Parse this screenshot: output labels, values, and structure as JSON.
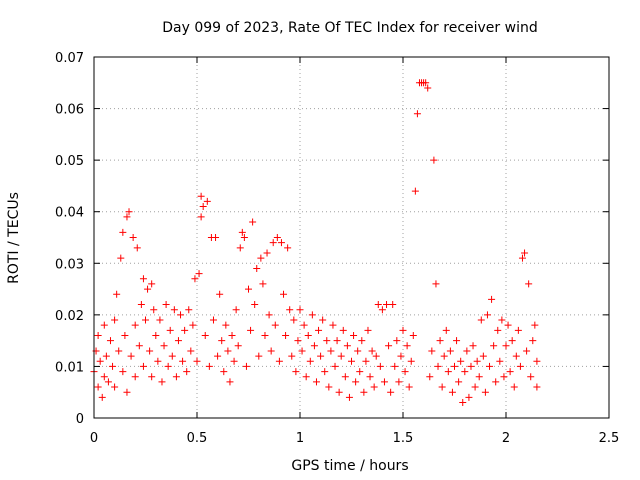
{
  "chart_data": {
    "type": "scatter",
    "title": "Day 099 of 2023, Rate Of TEC Index for receiver wind",
    "xlabel": "GPS time / hours",
    "ylabel": "ROTI / TECUs",
    "xlim": [
      0,
      2.5
    ],
    "ylim": [
      0,
      0.07
    ],
    "x_ticks": [
      0,
      0.5,
      1,
      1.5,
      2,
      2.5
    ],
    "x_tick_labels": [
      "0",
      "0.5",
      "1",
      "1.5",
      "2",
      "2.5"
    ],
    "y_ticks": [
      0,
      0.01,
      0.02,
      0.03,
      0.04,
      0.05,
      0.06,
      0.07
    ],
    "y_tick_labels": [
      "0",
      "0.01",
      "0.02",
      "0.03",
      "0.04",
      "0.05",
      "0.06",
      "0.07"
    ],
    "grid": true,
    "marker": "plus",
    "color": "#ff0000",
    "series": [
      {
        "name": "ROTI",
        "points": [
          [
            0.0,
            0.009
          ],
          [
            0.01,
            0.013
          ],
          [
            0.02,
            0.006
          ],
          [
            0.02,
            0.016
          ],
          [
            0.03,
            0.011
          ],
          [
            0.04,
            0.004
          ],
          [
            0.05,
            0.008
          ],
          [
            0.05,
            0.018
          ],
          [
            0.06,
            0.012
          ],
          [
            0.07,
            0.007
          ],
          [
            0.08,
            0.015
          ],
          [
            0.09,
            0.01
          ],
          [
            0.1,
            0.006
          ],
          [
            0.1,
            0.019
          ],
          [
            0.11,
            0.024
          ],
          [
            0.12,
            0.013
          ],
          [
            0.13,
            0.031
          ],
          [
            0.14,
            0.009
          ],
          [
            0.14,
            0.036
          ],
          [
            0.15,
            0.016
          ],
          [
            0.16,
            0.039
          ],
          [
            0.16,
            0.005
          ],
          [
            0.17,
            0.04
          ],
          [
            0.18,
            0.012
          ],
          [
            0.19,
            0.035
          ],
          [
            0.2,
            0.018
          ],
          [
            0.2,
            0.008
          ],
          [
            0.21,
            0.033
          ],
          [
            0.22,
            0.014
          ],
          [
            0.23,
            0.022
          ],
          [
            0.24,
            0.01
          ],
          [
            0.24,
            0.027
          ],
          [
            0.25,
            0.019
          ],
          [
            0.26,
            0.025
          ],
          [
            0.27,
            0.013
          ],
          [
            0.28,
            0.026
          ],
          [
            0.28,
            0.008
          ],
          [
            0.29,
            0.021
          ],
          [
            0.3,
            0.016
          ],
          [
            0.31,
            0.011
          ],
          [
            0.32,
            0.019
          ],
          [
            0.33,
            0.007
          ],
          [
            0.34,
            0.014
          ],
          [
            0.35,
            0.022
          ],
          [
            0.36,
            0.01
          ],
          [
            0.37,
            0.017
          ],
          [
            0.38,
            0.012
          ],
          [
            0.39,
            0.021
          ],
          [
            0.4,
            0.008
          ],
          [
            0.41,
            0.015
          ],
          [
            0.42,
            0.02
          ],
          [
            0.43,
            0.011
          ],
          [
            0.44,
            0.017
          ],
          [
            0.45,
            0.009
          ],
          [
            0.46,
            0.021
          ],
          [
            0.47,
            0.013
          ],
          [
            0.48,
            0.018
          ],
          [
            0.49,
            0.027
          ],
          [
            0.5,
            0.011
          ],
          [
            0.51,
            0.028
          ],
          [
            0.52,
            0.039
          ],
          [
            0.52,
            0.043
          ],
          [
            0.53,
            0.041
          ],
          [
            0.54,
            0.016
          ],
          [
            0.55,
            0.042
          ],
          [
            0.56,
            0.01
          ],
          [
            0.57,
            0.035
          ],
          [
            0.58,
            0.019
          ],
          [
            0.59,
            0.035
          ],
          [
            0.6,
            0.012
          ],
          [
            0.61,
            0.024
          ],
          [
            0.62,
            0.015
          ],
          [
            0.63,
            0.009
          ],
          [
            0.64,
            0.018
          ],
          [
            0.65,
            0.013
          ],
          [
            0.66,
            0.007
          ],
          [
            0.67,
            0.016
          ],
          [
            0.68,
            0.011
          ],
          [
            0.69,
            0.021
          ],
          [
            0.7,
            0.014
          ],
          [
            0.71,
            0.033
          ],
          [
            0.72,
            0.036
          ],
          [
            0.73,
            0.035
          ],
          [
            0.74,
            0.01
          ],
          [
            0.75,
            0.025
          ],
          [
            0.76,
            0.017
          ],
          [
            0.77,
            0.038
          ],
          [
            0.78,
            0.022
          ],
          [
            0.79,
            0.029
          ],
          [
            0.8,
            0.012
          ],
          [
            0.81,
            0.031
          ],
          [
            0.82,
            0.026
          ],
          [
            0.83,
            0.016
          ],
          [
            0.84,
            0.032
          ],
          [
            0.85,
            0.02
          ],
          [
            0.86,
            0.013
          ],
          [
            0.87,
            0.034
          ],
          [
            0.88,
            0.018
          ],
          [
            0.89,
            0.035
          ],
          [
            0.9,
            0.011
          ],
          [
            0.91,
            0.034
          ],
          [
            0.92,
            0.024
          ],
          [
            0.93,
            0.016
          ],
          [
            0.94,
            0.033
          ],
          [
            0.95,
            0.021
          ],
          [
            0.96,
            0.012
          ],
          [
            0.97,
            0.019
          ],
          [
            0.98,
            0.009
          ],
          [
            0.99,
            0.015
          ],
          [
            1.0,
            0.021
          ],
          [
            1.01,
            0.013
          ],
          [
            1.02,
            0.018
          ],
          [
            1.03,
            0.008
          ],
          [
            1.04,
            0.016
          ],
          [
            1.05,
            0.011
          ],
          [
            1.06,
            0.02
          ],
          [
            1.07,
            0.014
          ],
          [
            1.08,
            0.007
          ],
          [
            1.09,
            0.017
          ],
          [
            1.1,
            0.012
          ],
          [
            1.11,
            0.019
          ],
          [
            1.12,
            0.009
          ],
          [
            1.13,
            0.015
          ],
          [
            1.14,
            0.006
          ],
          [
            1.15,
            0.013
          ],
          [
            1.16,
            0.018
          ],
          [
            1.17,
            0.01
          ],
          [
            1.18,
            0.015
          ],
          [
            1.19,
            0.005
          ],
          [
            1.2,
            0.012
          ],
          [
            1.21,
            0.017
          ],
          [
            1.22,
            0.008
          ],
          [
            1.23,
            0.014
          ],
          [
            1.24,
            0.004
          ],
          [
            1.25,
            0.011
          ],
          [
            1.26,
            0.016
          ],
          [
            1.27,
            0.007
          ],
          [
            1.28,
            0.013
          ],
          [
            1.29,
            0.009
          ],
          [
            1.3,
            0.015
          ],
          [
            1.31,
            0.005
          ],
          [
            1.32,
            0.011
          ],
          [
            1.33,
            0.017
          ],
          [
            1.34,
            0.008
          ],
          [
            1.35,
            0.013
          ],
          [
            1.36,
            0.006
          ],
          [
            1.37,
            0.012
          ],
          [
            1.38,
            0.022
          ],
          [
            1.39,
            0.01
          ],
          [
            1.4,
            0.021
          ],
          [
            1.41,
            0.007
          ],
          [
            1.42,
            0.022
          ],
          [
            1.43,
            0.014
          ],
          [
            1.44,
            0.005
          ],
          [
            1.45,
            0.022
          ],
          [
            1.46,
            0.01
          ],
          [
            1.47,
            0.015
          ],
          [
            1.48,
            0.007
          ],
          [
            1.49,
            0.012
          ],
          [
            1.5,
            0.017
          ],
          [
            1.51,
            0.009
          ],
          [
            1.52,
            0.014
          ],
          [
            1.53,
            0.006
          ],
          [
            1.54,
            0.011
          ],
          [
            1.55,
            0.016
          ],
          [
            1.56,
            0.044
          ],
          [
            1.57,
            0.059
          ],
          [
            1.58,
            0.065
          ],
          [
            1.59,
            0.065
          ],
          [
            1.6,
            0.065
          ],
          [
            1.61,
            0.065
          ],
          [
            1.62,
            0.064
          ],
          [
            1.63,
            0.008
          ],
          [
            1.64,
            0.013
          ],
          [
            1.65,
            0.05
          ],
          [
            1.66,
            0.026
          ],
          [
            1.67,
            0.01
          ],
          [
            1.68,
            0.015
          ],
          [
            1.69,
            0.006
          ],
          [
            1.7,
            0.012
          ],
          [
            1.71,
            0.017
          ],
          [
            1.72,
            0.009
          ],
          [
            1.73,
            0.013
          ],
          [
            1.74,
            0.005
          ],
          [
            1.75,
            0.01
          ],
          [
            1.76,
            0.015
          ],
          [
            1.77,
            0.007
          ],
          [
            1.78,
            0.011
          ],
          [
            1.79,
            0.003
          ],
          [
            1.8,
            0.009
          ],
          [
            1.81,
            0.013
          ],
          [
            1.82,
            0.004
          ],
          [
            1.83,
            0.01
          ],
          [
            1.84,
            0.014
          ],
          [
            1.85,
            0.006
          ],
          [
            1.86,
            0.011
          ],
          [
            1.87,
            0.008
          ],
          [
            1.88,
            0.019
          ],
          [
            1.89,
            0.012
          ],
          [
            1.9,
            0.005
          ],
          [
            1.91,
            0.02
          ],
          [
            1.92,
            0.01
          ],
          [
            1.93,
            0.023
          ],
          [
            1.94,
            0.014
          ],
          [
            1.95,
            0.007
          ],
          [
            1.96,
            0.017
          ],
          [
            1.97,
            0.011
          ],
          [
            1.98,
            0.019
          ],
          [
            1.99,
            0.008
          ],
          [
            2.0,
            0.014
          ],
          [
            2.01,
            0.018
          ],
          [
            2.02,
            0.009
          ],
          [
            2.03,
            0.015
          ],
          [
            2.04,
            0.006
          ],
          [
            2.05,
            0.012
          ],
          [
            2.06,
            0.017
          ],
          [
            2.07,
            0.01
          ],
          [
            2.08,
            0.031
          ],
          [
            2.09,
            0.032
          ],
          [
            2.1,
            0.013
          ],
          [
            2.11,
            0.026
          ],
          [
            2.12,
            0.008
          ],
          [
            2.13,
            0.015
          ],
          [
            2.14,
            0.018
          ],
          [
            2.15,
            0.011
          ],
          [
            2.15,
            0.006
          ]
        ]
      }
    ]
  }
}
